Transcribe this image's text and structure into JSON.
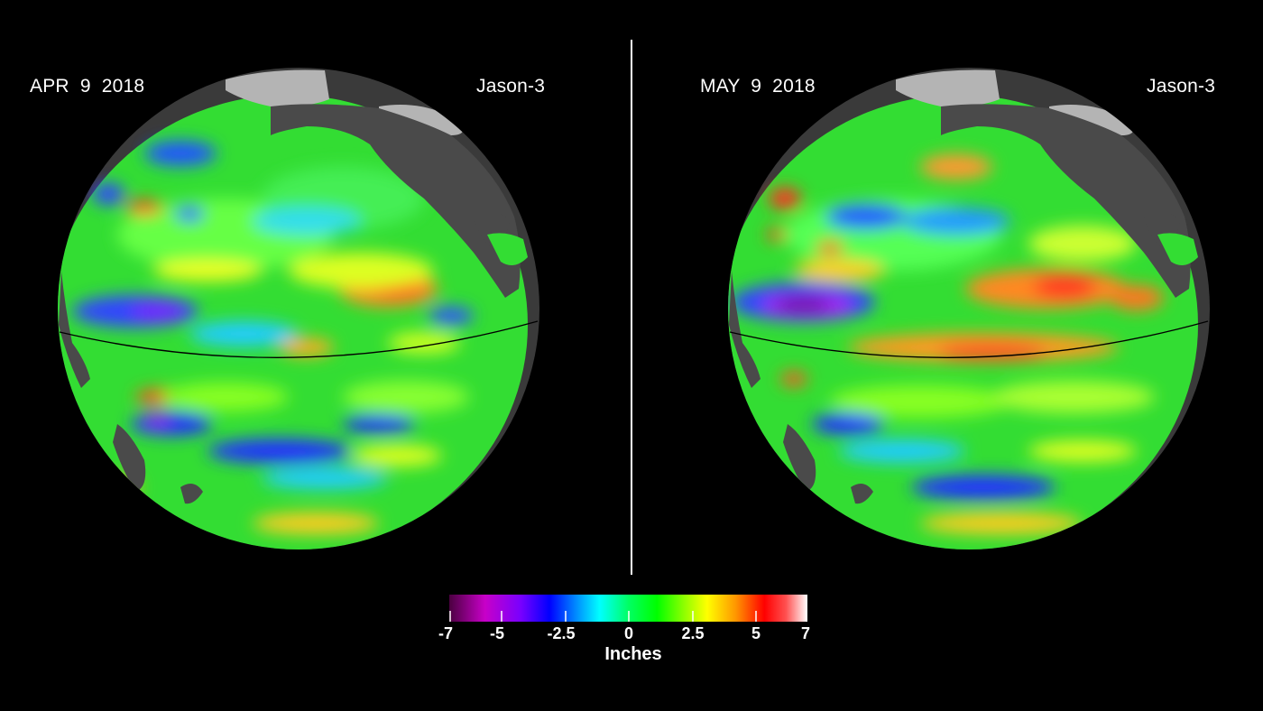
{
  "panels": [
    {
      "date": "APR  9  2018",
      "satellite": "Jason-3"
    },
    {
      "date": "MAY  9  2018",
      "satellite": "Jason-3"
    }
  ],
  "colorbar": {
    "unit": "Inches",
    "ticks": [
      "-7",
      "-5",
      "-2.5",
      "0",
      "2.5",
      "5",
      "7"
    ],
    "range": [
      -7,
      7
    ],
    "colors": [
      "#4b0040",
      "#c800c8",
      "#7800ff",
      "#0000ff",
      "#0096ff",
      "#00ffff",
      "#00ff64",
      "#00ff00",
      "#96ff00",
      "#ffff00",
      "#ff9600",
      "#ff0000",
      "#ff5050",
      "#ffffff"
    ]
  },
  "colors": {
    "background": "#000000",
    "land": "#4a4a4a",
    "ice": "#b4b4b4",
    "ocean_base": "#22dd44",
    "equator_line": "#000000",
    "divider": "#ffffff"
  }
}
